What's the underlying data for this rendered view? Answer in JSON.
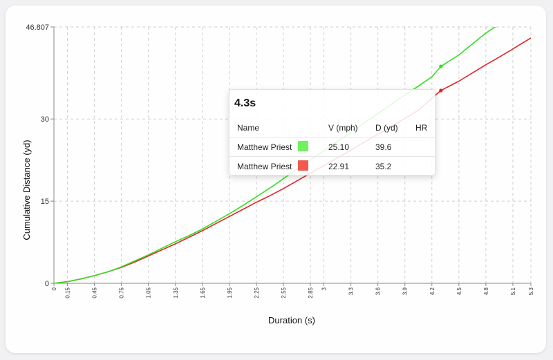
{
  "colors": {
    "series_green": "#33dd22",
    "series_red": "#e02424",
    "swatch_green": "#6ff05e",
    "swatch_red": "#f05a50"
  },
  "chart_data": {
    "type": "line",
    "xlabel": "Duration (s)",
    "ylabel": "Cumulative Distance (yd)",
    "xlim": [
      0,
      5.3
    ],
    "ylim": [
      0,
      46.807
    ],
    "grid": true,
    "x_ticks": [
      "0",
      "0.15",
      "0.45",
      "0.75",
      "1.05",
      "1.35",
      "1.65",
      "1.95",
      "2.25",
      "2.55",
      "2.85",
      "3",
      "3.3",
      "3.6",
      "3.9",
      "4.2",
      "4.5",
      "4.8",
      "5.1",
      "5.3"
    ],
    "y_ticks": [
      "0",
      "15",
      "30",
      "46.807"
    ],
    "series": [
      {
        "name": "Matthew Priest",
        "color": "#33dd22",
        "x": [
          0,
          0.15,
          0.3,
          0.45,
          0.6,
          0.75,
          0.9,
          1.05,
          1.2,
          1.35,
          1.5,
          1.65,
          1.8,
          1.95,
          2.1,
          2.25,
          2.4,
          2.55,
          2.7,
          2.85,
          3.0,
          3.15,
          3.3,
          3.45,
          3.6,
          3.75,
          3.9,
          4.05,
          4.2,
          4.3,
          4.5,
          4.65,
          4.8,
          4.95
        ],
        "y": [
          0,
          0.3,
          0.8,
          1.4,
          2.1,
          3.0,
          4.1,
          5.2,
          6.4,
          7.6,
          8.7,
          9.9,
          11.3,
          12.7,
          14.2,
          15.8,
          17.4,
          19.1,
          20.8,
          22.5,
          24.2,
          25.9,
          27.6,
          29.3,
          31.0,
          32.7,
          34.4,
          36.0,
          37.7,
          39.6,
          41.7,
          43.7,
          45.7,
          47.3
        ]
      },
      {
        "name": "Matthew Priest",
        "color": "#e02424",
        "x": [
          0,
          0.15,
          0.3,
          0.45,
          0.6,
          0.75,
          0.9,
          1.05,
          1.2,
          1.35,
          1.5,
          1.65,
          1.8,
          1.95,
          2.1,
          2.25,
          2.4,
          2.55,
          2.7,
          2.85,
          3.0,
          3.15,
          3.3,
          3.45,
          3.6,
          3.75,
          3.9,
          4.05,
          4.2,
          4.3,
          4.5,
          4.65,
          4.8,
          4.95,
          5.1,
          5.3
        ],
        "y": [
          0,
          0.3,
          0.8,
          1.4,
          2.1,
          2.9,
          3.9,
          5.0,
          6.1,
          7.2,
          8.4,
          9.6,
          10.9,
          12.2,
          13.5,
          14.8,
          16.0,
          17.3,
          18.7,
          20.1,
          21.5,
          22.9,
          24.3,
          25.8,
          27.2,
          28.6,
          30.1,
          31.6,
          33.8,
          35.2,
          36.9,
          38.4,
          39.9,
          41.3,
          42.8,
          44.8
        ]
      }
    ],
    "markers": [
      {
        "series": 0,
        "x": 4.3,
        "y": 39.6
      },
      {
        "series": 1,
        "x": 4.3,
        "y": 35.2
      }
    ]
  },
  "tooltip": {
    "title": "4.3s",
    "headers": {
      "name": "Name",
      "v": "V (mph)",
      "d": "D (yd)",
      "hr": "HR"
    },
    "rows": [
      {
        "name": "Matthew Priest",
        "v": "25.10",
        "d": "39.6",
        "hr": "",
        "swatch": "#6ff05e"
      },
      {
        "name": "Matthew Priest",
        "v": "22.91",
        "d": "35.2",
        "hr": "",
        "swatch": "#f05a50"
      }
    ]
  }
}
